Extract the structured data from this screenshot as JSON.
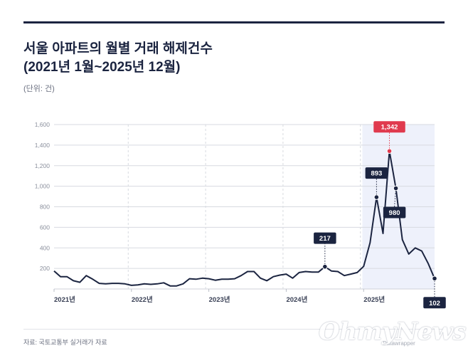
{
  "header": {
    "title_line1": "서울 아파트의 월별 거래 해제건수",
    "title_line2": "(2021년 1월~2025년 12월)",
    "unit": "(단위: 건)"
  },
  "footer": {
    "source": "자료: 국토교통부 실거래가 자료",
    "watermark": "OhmyNews",
    "credit": "Datawrapper"
  },
  "colors": {
    "line": "#1b2440",
    "highlight": "#e03a4e",
    "shade": "#eef1fb",
    "grid": "#d7dae0",
    "axis_text": "#8a8f9c"
  },
  "chart_data": {
    "type": "line",
    "title": "서울 아파트의 월별 거래 해제건수",
    "subtitle": "(2021년 1월~2025년 12월)",
    "xlabel": "",
    "ylabel": "",
    "ylim": [
      0,
      1600
    ],
    "yticks": [
      200,
      400,
      600,
      800,
      1000,
      1200,
      1400,
      1600
    ],
    "ytick_labels": [
      "200",
      "400",
      "600",
      "800",
      "1,000",
      "1,200",
      "1,400",
      "1,600"
    ],
    "x_start": "2021-01",
    "xtick_labels": [
      "2021년",
      "2022년",
      "2023년",
      "2024년",
      "2025년"
    ],
    "grid": true,
    "shaded_range": [
      "2025-01",
      "2025-12"
    ],
    "series": [
      {
        "values": [
          175,
          120,
          120,
          80,
          65,
          130,
          95,
          55,
          50,
          55,
          55,
          50,
          35,
          40,
          50,
          45,
          50,
          60,
          30,
          30,
          50,
          100,
          95,
          105,
          100,
          85,
          95,
          95,
          100,
          130,
          170,
          170,
          105,
          80,
          120,
          135,
          145,
          105,
          160,
          170,
          165,
          165,
          217,
          175,
          170,
          130,
          145,
          160,
          220,
          450,
          893,
          540,
          1342,
          980,
          480,
          340,
          400,
          370,
          250,
          102
        ]
      }
    ],
    "annotations": [
      {
        "month": "2024-07",
        "value": 217,
        "label": "217",
        "style": "dark"
      },
      {
        "month": "2025-03",
        "value": 893,
        "label": "893",
        "style": "dark"
      },
      {
        "month": "2025-05",
        "value": 1342,
        "label": "1,342",
        "style": "highlight"
      },
      {
        "month": "2025-06",
        "value": 980,
        "label": "980",
        "style": "dark"
      },
      {
        "month": "2025-12",
        "value": 102,
        "label": "102",
        "style": "dark"
      }
    ]
  }
}
